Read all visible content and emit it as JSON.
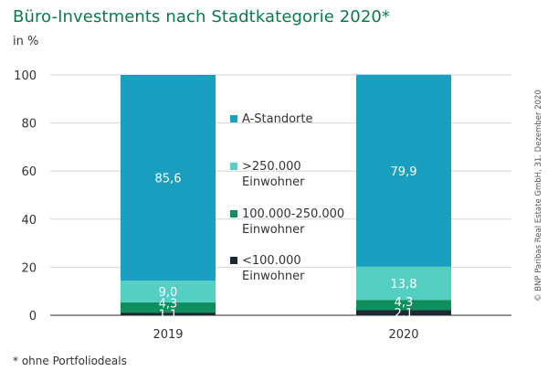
{
  "title": "Büro-Investments nach Stadtkategorie 2020*",
  "unit_label": "in %",
  "footnote": "* ohne Portfoliodeals",
  "copyright": "© BNP Paribas Real Estate GmbH, 31. Dezember 2020",
  "chart_data": {
    "type": "bar",
    "stacked": true,
    "categories": [
      "2019",
      "2020"
    ],
    "ylim": [
      0,
      100
    ],
    "yticks": [
      0,
      20,
      40,
      60,
      80,
      100
    ],
    "grid": true,
    "legend_position": "center",
    "series": [
      {
        "name": "<100.000 Einwohner",
        "values": [
          1.1,
          2.1
        ],
        "labels": [
          "1,1",
          "2,1"
        ],
        "color": "#1b2a33"
      },
      {
        "name": "100.000-250.000 Einwohner",
        "values": [
          4.3,
          4.3
        ],
        "labels": [
          "4,3",
          "4,3"
        ],
        "color": "#0f8f5f"
      },
      {
        "name": ">250.000 Einwohner",
        "values": [
          9.0,
          13.8
        ],
        "labels": [
          "9,0",
          "13,8"
        ],
        "color": "#56cfc3"
      },
      {
        "name": "A-Standorte",
        "values": [
          85.6,
          79.9
        ],
        "labels": [
          "85,6",
          "79,9"
        ],
        "color": "#1b9fc0"
      }
    ],
    "legend": [
      {
        "lines": [
          "A-Standorte"
        ],
        "color": "#1b9fc0"
      },
      {
        "lines": [
          ">250.000",
          "Einwohner"
        ],
        "color": "#56cfc3"
      },
      {
        "lines": [
          "100.000-250.000",
          "Einwohner"
        ],
        "color": "#0f8f5f"
      },
      {
        "lines": [
          "<100.000",
          "Einwohner"
        ],
        "color": "#1b2a33"
      }
    ]
  }
}
